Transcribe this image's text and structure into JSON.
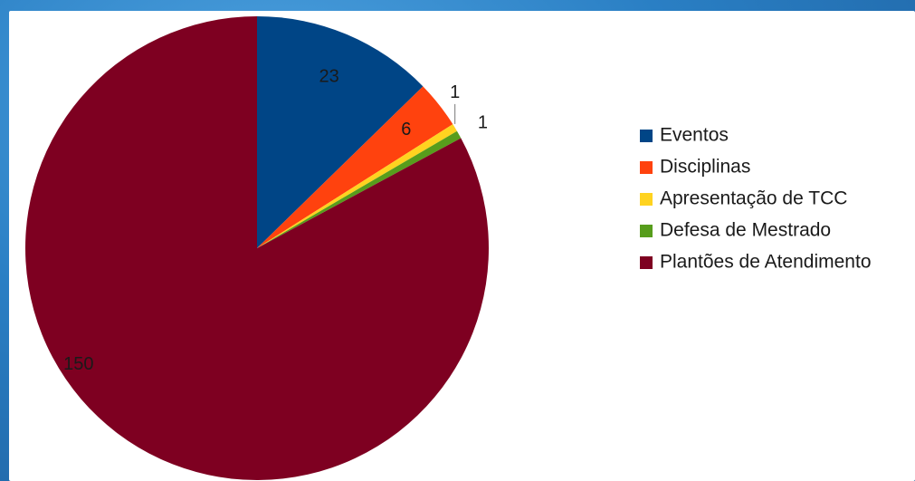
{
  "chart_data": {
    "type": "pie",
    "title": "",
    "categories": [
      "Eventos",
      "Disciplinas",
      "Apresentação de TCC",
      "Defesa de Mestrado",
      "Plantões de Atendimento"
    ],
    "values": [
      23,
      6,
      1,
      1,
      150
    ],
    "colors": [
      "#004586",
      "#ff420e",
      "#ffd320",
      "#579d1c",
      "#7e0021"
    ],
    "data_labels": [
      "23",
      "6",
      "1",
      "1",
      "150"
    ],
    "legend_position": "right"
  }
}
